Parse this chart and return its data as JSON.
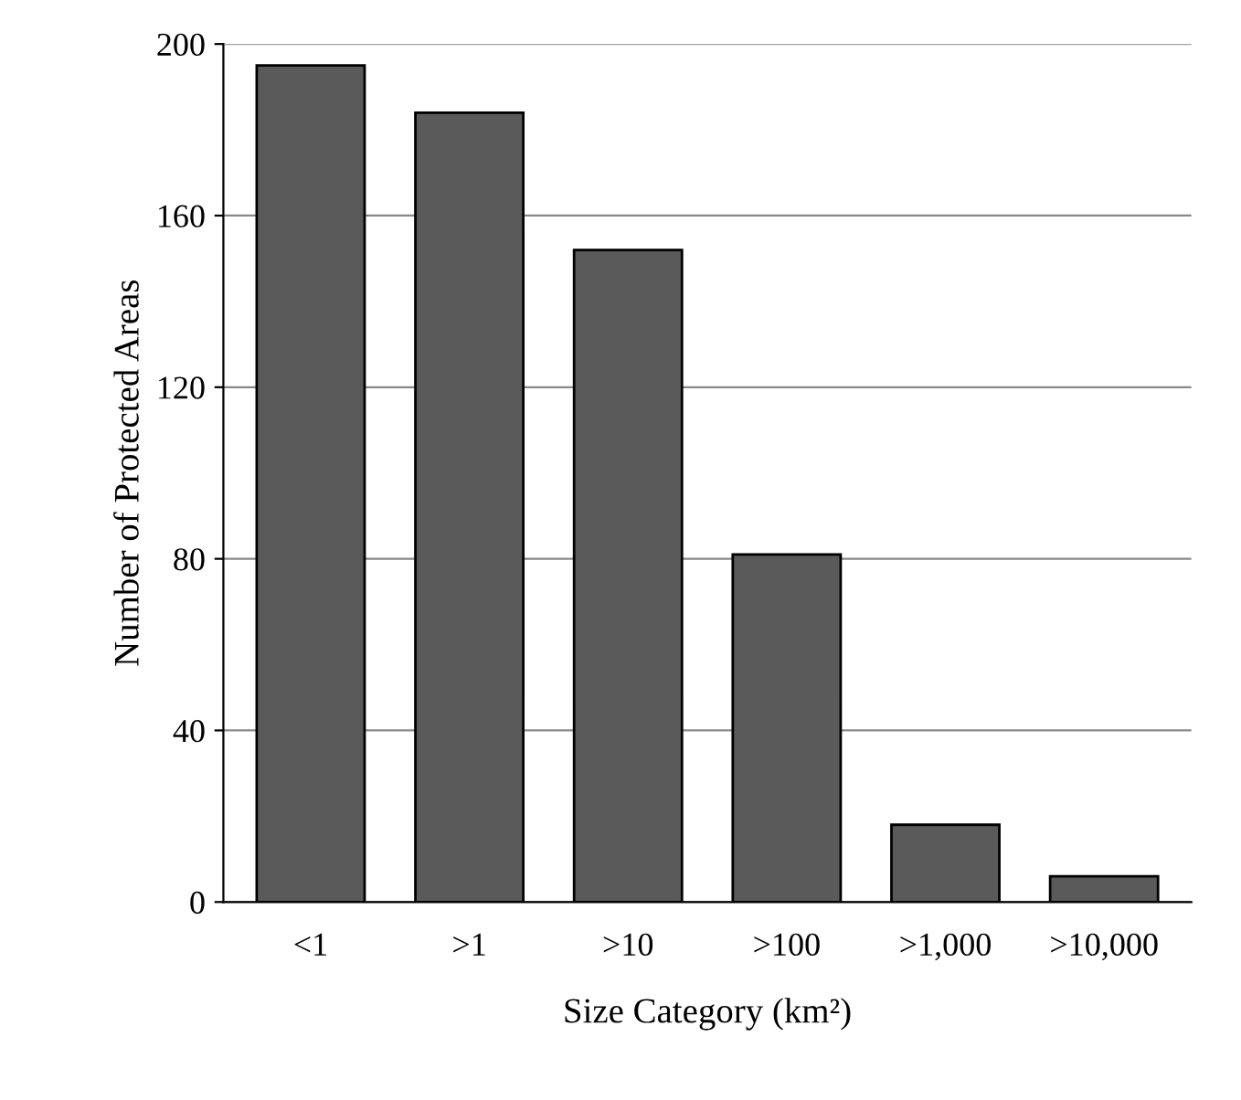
{
  "chart_data": {
    "type": "bar",
    "xlabel": "Size Category (km²)",
    "ylabel": "Number of Protected Areas",
    "categories": [
      "<1",
      ">1",
      ">10",
      ">100",
      ">1,000",
      ">10,000"
    ],
    "values": [
      195,
      184,
      152,
      81,
      18,
      6
    ],
    "color": "#5a5a5a",
    "ylim": [
      0,
      200
    ],
    "yticks": [
      0,
      40,
      80,
      120,
      160,
      200
    ],
    "grid": "y",
    "legend": false
  }
}
